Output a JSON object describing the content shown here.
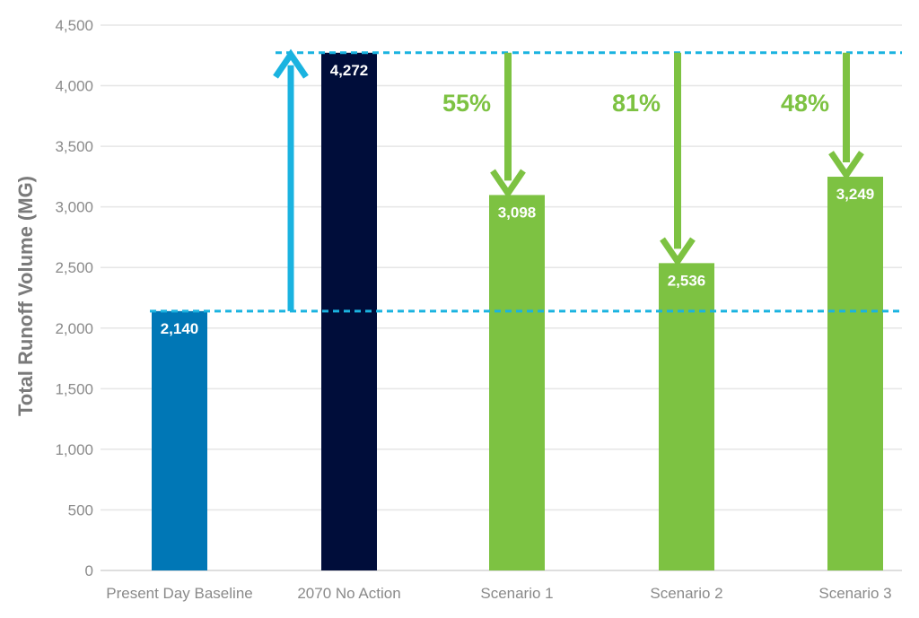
{
  "chart_data": {
    "type": "bar",
    "ylabel": "Total Runoff Volume (MG)",
    "xlabel": "",
    "ylim": [
      0,
      4500
    ],
    "yticks": [
      0,
      500,
      1000,
      1500,
      2000,
      2500,
      3000,
      3500,
      4000,
      4500
    ],
    "ytick_labels": [
      "0",
      "500",
      "1,000",
      "1,500",
      "2,000",
      "2,500",
      "3,000",
      "3,500",
      "4,000",
      "4,500"
    ],
    "grid": true,
    "categories": [
      "Present Day Baseline",
      "2070 No Action",
      "Scenario 1",
      "Scenario 2",
      "Scenario 3"
    ],
    "values": [
      2140,
      4272,
      3098,
      2536,
      3249
    ],
    "value_labels": [
      "2,140",
      "4,272",
      "3,098",
      "2,536",
      "3,249"
    ],
    "bar_colors": [
      "#0077b6",
      "#000d3a",
      "#7dc242",
      "#7dc242",
      "#7dc242"
    ],
    "reference_lines": [
      {
        "value": 2140,
        "style": "dashed",
        "color": "#1ab3e0"
      },
      {
        "value": 4272,
        "style": "dashed",
        "color": "#1ab3e0"
      }
    ],
    "annotations": [
      {
        "type": "arrow-up",
        "from": 2140,
        "to": 4272,
        "color": "#1ab3e0",
        "position": "between Present Day Baseline and 2070 No Action"
      },
      {
        "type": "arrow-down",
        "category": "Scenario 1",
        "from": 4272,
        "to": 3098,
        "label": "55%",
        "color": "#7dc242"
      },
      {
        "type": "arrow-down",
        "category": "Scenario 2",
        "from": 4272,
        "to": 2536,
        "label": "81%",
        "color": "#7dc242"
      },
      {
        "type": "arrow-down",
        "category": "Scenario 3",
        "from": 4272,
        "to": 3249,
        "label": "48%",
        "color": "#7dc242"
      }
    ]
  }
}
